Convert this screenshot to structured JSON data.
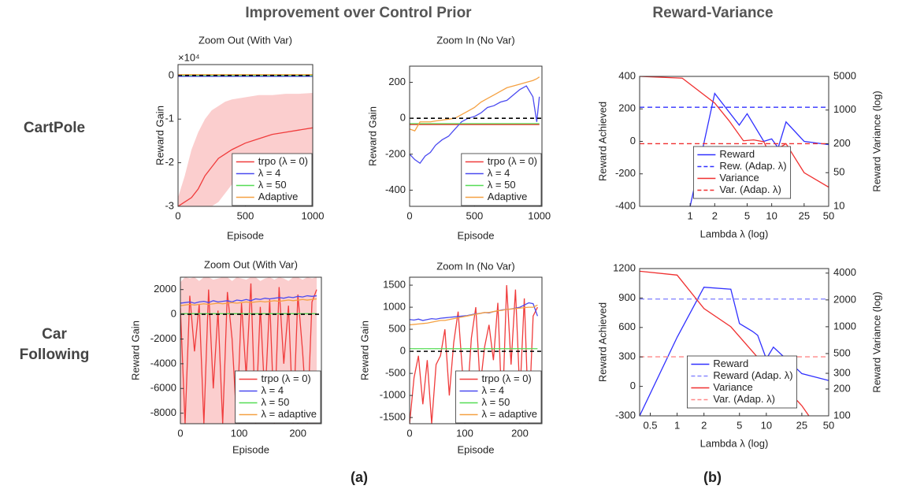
{
  "title_a": "Improvement over Control Prior",
  "title_b": "Reward-Variance",
  "rows": [
    "CartPole",
    "Car Following"
  ],
  "panel_labels": [
    "(a)",
    "(b)"
  ],
  "chart_data": [
    {
      "type": "line",
      "title": "Zoom Out (With Var)",
      "xlabel": "Episode",
      "ylabel": "Reward Gain",
      "multiplier": "×10⁴",
      "legend": "lower right",
      "baseline": 0,
      "xlim": [
        0,
        1000
      ],
      "xticks": [
        0,
        500,
        1000
      ],
      "ylim": [
        -3,
        0.25
      ],
      "yticks": [
        0,
        -1,
        -2,
        -3
      ],
      "x": [
        0,
        50,
        100,
        150,
        200,
        250,
        300,
        350,
        400,
        500,
        600,
        700,
        800,
        900,
        1000
      ],
      "series": [
        {
          "name": "trpo (λ = 0)",
          "color": "#f03c3c",
          "values": [
            -3,
            -2.9,
            -2.8,
            -2.6,
            -2.3,
            -2.1,
            -1.9,
            -1.8,
            -1.7,
            -1.55,
            -1.45,
            -1.35,
            -1.3,
            -1.25,
            -1.2
          ],
          "band_upper": [
            -2.8,
            -2.3,
            -1.7,
            -1.3,
            -1.0,
            -0.8,
            -0.7,
            -0.6,
            -0.55,
            -0.5,
            -0.45,
            -0.45,
            -0.42,
            -0.42,
            -0.4
          ],
          "band_lower": [
            -3,
            -3,
            -3,
            -3,
            -3,
            -3,
            -2.9,
            -2.7,
            -2.5,
            -2.4,
            -2.3,
            -2.2,
            -2.15,
            -2.1,
            -2.05
          ]
        },
        {
          "name": "λ = 4",
          "color": "#4a4af0",
          "values": [
            -0.02,
            -0.02,
            -0.02,
            -0.02,
            -0.02,
            -0.02,
            -0.02,
            -0.02,
            -0.02,
            -0.02,
            -0.02,
            -0.02,
            -0.02,
            -0.02,
            -0.02
          ]
        },
        {
          "name": "λ = 50",
          "color": "#55dd55",
          "values": [
            0,
            0,
            0,
            0,
            0,
            0,
            0,
            0,
            0,
            0,
            0,
            0,
            0,
            0,
            0
          ]
        },
        {
          "name": "Adaptive",
          "color": "#f5a142",
          "values": [
            0.02,
            0.02,
            0.02,
            0.02,
            0.02,
            0.02,
            0.02,
            0.02,
            0.02,
            0.02,
            0.02,
            0.02,
            0.02,
            0.02,
            0.02
          ]
        }
      ]
    },
    {
      "type": "line",
      "title": "Zoom In (No Var)",
      "xlabel": "Episode",
      "ylabel": "Reward Gain",
      "legend": "lower right",
      "baseline": 0,
      "xlim": [
        0,
        1020
      ],
      "xticks": [
        0,
        500,
        1000
      ],
      "ylim": [
        -490,
        290
      ],
      "yticks": [
        200,
        0,
        -200,
        -400
      ],
      "x": [
        0,
        40,
        80,
        120,
        160,
        200,
        250,
        300,
        350,
        400,
        450,
        500,
        550,
        600,
        650,
        700,
        750,
        800,
        850,
        900,
        950,
        980,
        1000
      ],
      "series": [
        {
          "name": "trpo (λ = 0)",
          "color": "#f03c3c",
          "values": [
            -35,
            -35,
            -35,
            -35,
            -35,
            -35,
            -35,
            -35,
            -35,
            -35,
            -35,
            -35,
            -35,
            -35,
            -35,
            -35,
            -35,
            -35,
            -35,
            -35,
            -35,
            -35,
            -35
          ]
        },
        {
          "name": "λ = 4",
          "color": "#4a4af0",
          "values": [
            -200,
            -230,
            -250,
            -210,
            -190,
            -150,
            -120,
            -100,
            -60,
            -20,
            0,
            10,
            30,
            60,
            70,
            90,
            100,
            130,
            160,
            180,
            120,
            -20,
            120
          ]
        },
        {
          "name": "λ = 50",
          "color": "#55dd55",
          "values": [
            -30,
            -30,
            -30,
            -30,
            -30,
            -30,
            -30,
            -30,
            -30,
            -30,
            -30,
            -30,
            -30,
            -30,
            -30,
            -30,
            -30,
            -30,
            -30,
            -30,
            -30,
            -30,
            -30
          ]
        },
        {
          "name": "Adaptive",
          "color": "#f5a142",
          "values": [
            -60,
            -70,
            -20,
            -20,
            -20,
            -15,
            -10,
            -5,
            0,
            20,
            40,
            60,
            90,
            110,
            130,
            150,
            170,
            180,
            190,
            200,
            210,
            220,
            230
          ]
        }
      ]
    },
    {
      "type": "line",
      "title": "Zoom Out (With Var)",
      "xlabel": "Episode",
      "ylabel": "Reward Gain",
      "legend": "lower right",
      "baseline": 0,
      "xlim": [
        0,
        240
      ],
      "xticks": [
        0,
        100,
        200
      ],
      "ylim": [
        -8850,
        3000
      ],
      "yticks": [
        2000,
        0,
        -2000,
        -4000,
        -6000,
        -8000
      ],
      "x": [
        0,
        8,
        16,
        24,
        32,
        40,
        48,
        56,
        64,
        72,
        80,
        88,
        96,
        104,
        112,
        120,
        128,
        136,
        144,
        152,
        160,
        168,
        176,
        184,
        192,
        200,
        208,
        216,
        224,
        232
      ],
      "series": [
        {
          "name": "trpo (λ = 0)",
          "color": "#f03c3c",
          "values": [
            500,
            -8850,
            1500,
            -3000,
            800,
            -8850,
            2000,
            -6000,
            300,
            -8850,
            1800,
            -2000,
            -8850,
            900,
            -5000,
            2500,
            -8850,
            600,
            -7000,
            1200,
            -8850,
            2200,
            -4000,
            700,
            -8850,
            1600,
            -3000,
            -8850,
            1000,
            2000
          ],
          "band_upper": [
            2600,
            3000,
            2900,
            3000,
            2700,
            3000,
            3000,
            2800,
            2900,
            3000,
            3000,
            2700,
            3000,
            2900,
            2800,
            3000,
            3000,
            2700,
            2900,
            3000,
            2800,
            3000,
            2900,
            2700,
            3000,
            3000,
            2800,
            3000,
            2900,
            3000
          ],
          "band_lower": [
            -8850,
            -8850,
            -8850,
            -8850,
            -8850,
            -8850,
            -8850,
            -8850,
            -8850,
            -8850,
            -8850,
            -8850,
            -8850,
            -8850,
            -8850,
            -8850,
            -8850,
            -8850,
            -8850,
            -8850,
            -8850,
            -8850,
            -8850,
            -8850,
            -8850,
            -8850,
            -8850,
            -8850,
            -8850,
            -8850
          ]
        },
        {
          "name": "λ = 4",
          "color": "#4a4af0",
          "values": [
            900,
            950,
            1000,
            900,
            1000,
            1050,
            950,
            1100,
            1000,
            1050,
            1100,
            1000,
            1150,
            1100,
            1200,
            1100,
            1250,
            1200,
            1300,
            1250,
            1300,
            1350,
            1300,
            1400,
            1350,
            1450,
            1400,
            1500,
            1450,
            1500
          ]
        },
        {
          "name": "λ = 50",
          "color": "#55dd55",
          "values": [
            50,
            50,
            50,
            50,
            50,
            50,
            50,
            50,
            50,
            50,
            50,
            50,
            50,
            50,
            50,
            50,
            50,
            50,
            50,
            50,
            50,
            50,
            50,
            50,
            50,
            50,
            50,
            50,
            50,
            50
          ]
        },
        {
          "name": "λ = adaptive",
          "color": "#f5a142",
          "values": [
            700,
            750,
            800,
            750,
            800,
            850,
            800,
            850,
            900,
            850,
            900,
            950,
            900,
            950,
            1000,
            950,
            1000,
            1050,
            1000,
            1050,
            1100,
            1050,
            1100,
            1150,
            1100,
            1150,
            1200,
            1150,
            1200,
            1250
          ]
        }
      ]
    },
    {
      "type": "line",
      "title": "Zoom In (No Var)",
      "xlabel": "Episode",
      "ylabel": "Reward Gain",
      "legend": "lower right",
      "baseline": 0,
      "xlim": [
        0,
        240
      ],
      "xticks": [
        0,
        100,
        200
      ],
      "ylim": [
        -1640,
        1680
      ],
      "yticks": [
        1500,
        1000,
        500,
        0,
        -500,
        -1000,
        -1500
      ],
      "x": [
        0,
        8,
        16,
        24,
        32,
        40,
        48,
        56,
        64,
        72,
        80,
        88,
        96,
        104,
        112,
        120,
        128,
        136,
        144,
        152,
        160,
        168,
        176,
        184,
        192,
        200,
        208,
        216,
        224,
        232
      ],
      "series": [
        {
          "name": "trpo (λ = 0)",
          "color": "#f03c3c",
          "values": [
            -1640,
            -600,
            -100,
            -1200,
            -200,
            -1640,
            -300,
            -100,
            500,
            -1000,
            200,
            900,
            -500,
            -1200,
            300,
            1000,
            -800,
            100,
            600,
            -200,
            1100,
            -1500,
            1500,
            -300,
            1400,
            -1000,
            1200,
            -1640,
            800,
            1000
          ]
        },
        {
          "name": "λ = 4",
          "color": "#4a4af0",
          "values": [
            720,
            710,
            730,
            700,
            720,
            740,
            730,
            750,
            760,
            770,
            780,
            790,
            800,
            810,
            830,
            850,
            860,
            880,
            870,
            900,
            920,
            940,
            950,
            960,
            980,
            1000,
            1050,
            1100,
            1080,
            800
          ]
        },
        {
          "name": "λ = 50",
          "color": "#55dd55",
          "values": [
            60,
            60,
            60,
            60,
            60,
            60,
            60,
            60,
            60,
            60,
            60,
            60,
            60,
            60,
            60,
            60,
            60,
            60,
            60,
            60,
            60,
            60,
            60,
            60,
            60,
            60,
            60,
            60,
            60,
            60
          ]
        },
        {
          "name": "λ = adaptive",
          "color": "#f5a142",
          "values": [
            600,
            610,
            620,
            630,
            640,
            660,
            680,
            700,
            700,
            720,
            740,
            760,
            780,
            800,
            820,
            840,
            860,
            880,
            880,
            900,
            920,
            930,
            950,
            960,
            970,
            980,
            990,
            1000,
            1000,
            1050
          ]
        }
      ]
    },
    {
      "type": "line",
      "xlabel": "Lambda λ (log)",
      "ylabel": "Reward Achieved",
      "y2label": "Reward Variance (log)",
      "ycolor": "#1a8fd6",
      "y2color": "#e8743b",
      "legend": "lower center",
      "xscale": "log",
      "xlim": [
        0.24,
        50
      ],
      "xticks": [
        1,
        2,
        5,
        10,
        25,
        50
      ],
      "ylim": [
        -400,
        400
      ],
      "yticks": [
        400,
        200,
        0,
        -200,
        -400
      ],
      "y2scale": "log",
      "y2lim": [
        10,
        5000
      ],
      "y2ticks": [
        5000,
        1000,
        200,
        50,
        10
      ],
      "series": [
        {
          "name": "Reward",
          "color": "#3030ff",
          "x": [
            1,
            2,
            4,
            5,
            8,
            10,
            12,
            15,
            25,
            50
          ],
          "values": [
            -400,
            295,
            100,
            170,
            0,
            15,
            -40,
            120,
            0,
            -20
          ]
        },
        {
          "name": "Rew. (Adap. λ)",
          "color": "#3030ff",
          "dash": true,
          "value": 210
        },
        {
          "name": "Variance",
          "color": "#f03030",
          "axis": "y2",
          "x": [
            0.24,
            0.8,
            2,
            3,
            4.5,
            6,
            8,
            10,
            12,
            15,
            25,
            50
          ],
          "values": [
            5000,
            4600,
            1400,
            600,
            230,
            240,
            220,
            100,
            160,
            200,
            50,
            25
          ]
        },
        {
          "name": "Var. (Adap. λ)",
          "color": "#f03030",
          "dash": true,
          "axis": "y2",
          "value": 200
        }
      ]
    },
    {
      "type": "line",
      "xlabel": "Lambda λ (log)",
      "ylabel": "Reward Achieved",
      "y2label": "Reward Variance (log)",
      "ycolor": "#1a8fd6",
      "y2color": "#e8743b",
      "legend": "lower center",
      "xscale": "log",
      "xlim": [
        0.38,
        50
      ],
      "xticks": [
        0.5,
        1,
        2,
        5,
        10,
        25,
        50
      ],
      "ylim": [
        -300,
        1200
      ],
      "yticks": [
        1200,
        900,
        600,
        300,
        0,
        -300
      ],
      "y2scale": "log",
      "y2lim": [
        100,
        4500
      ],
      "y2ticks": [
        4000,
        2000,
        1000,
        500,
        300,
        200,
        100
      ],
      "series": [
        {
          "name": "Reward",
          "color": "#3030ff",
          "x": [
            0.38,
            1,
            2,
            4,
            5,
            7,
            8,
            10,
            12,
            25,
            50
          ],
          "values": [
            -300,
            500,
            1010,
            990,
            640,
            560,
            520,
            280,
            400,
            130,
            60
          ]
        },
        {
          "name": "Reward (Adap. λ)",
          "color": "#8888ff",
          "dash": true,
          "value": 890
        },
        {
          "name": "Variance",
          "color": "#f03030",
          "axis": "y2",
          "x": [
            0.38,
            1,
            2,
            4,
            10,
            25,
            30
          ],
          "values": [
            4200,
            3800,
            1600,
            1000,
            350,
            130,
            100
          ]
        },
        {
          "name": "Var. (Adap. λ)",
          "color": "#ff8888",
          "dash": true,
          "axis": "y2",
          "value": 460
        }
      ]
    }
  ]
}
